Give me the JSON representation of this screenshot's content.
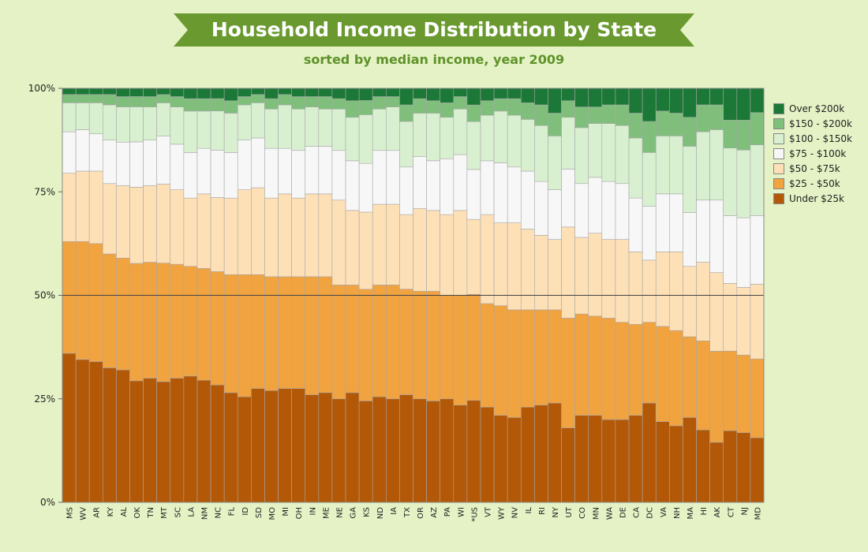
{
  "title": "Household Income Distribution by State",
  "subtitle": "sorted by median income, year 2009",
  "chart_data": {
    "type": "bar",
    "stacked": true,
    "orientation": "vertical",
    "ylim": [
      0,
      100
    ],
    "y_ticks": [
      "0%",
      "25%",
      "50%",
      "75%",
      "100%"
    ],
    "y_tick_values": [
      0,
      25,
      50,
      75,
      100
    ],
    "reference_line": 50,
    "legend_position": "right",
    "categories": [
      "MS",
      "WV",
      "AR",
      "KY",
      "AL",
      "OK",
      "TN",
      "MT",
      "SC",
      "LA",
      "NM",
      "NC",
      "FL",
      "ID",
      "SD",
      "MO",
      "MI",
      "OH",
      "IN",
      "ME",
      "NE",
      "GA",
      "KS",
      "ND",
      "IA",
      "TX",
      "OR",
      "AZ",
      "PA",
      "WI",
      "*US",
      "VT",
      "WY",
      "NV",
      "IL",
      "RI",
      "NY",
      "UT",
      "CO",
      "MN",
      "WA",
      "DE",
      "CA",
      "DC",
      "VA",
      "NH",
      "MA",
      "HI",
      "AK",
      "CT",
      "NJ",
      "MD"
    ],
    "series": [
      {
        "name": "Under $25k",
        "color": "#b35806",
        "values": [
          36,
          34.5,
          34,
          32.5,
          32,
          29.5,
          30,
          29,
          30,
          30.5,
          29.5,
          28.5,
          26.5,
          25.5,
          27.5,
          27,
          27.5,
          27.5,
          26,
          26.5,
          25,
          26.5,
          25,
          25.5,
          25,
          26,
          25,
          24.5,
          25,
          23.5,
          24.5,
          23,
          21,
          20.5,
          23,
          23.5,
          24,
          18,
          21,
          21,
          20,
          20,
          21,
          24,
          19.5,
          18.5,
          20.5,
          17.5,
          14.5,
          18,
          17.5,
          16
        ]
      },
      {
        "name": "$25 - $50k",
        "color": "#f1a340",
        "values": [
          27,
          28.5,
          28.5,
          27.5,
          27,
          28.5,
          28,
          28.5,
          27.5,
          26.5,
          27,
          27.5,
          28.5,
          29.5,
          27.5,
          27.5,
          27,
          27,
          28.5,
          28,
          27.5,
          26,
          27.5,
          27,
          27.5,
          25.5,
          26,
          26.5,
          25,
          26.5,
          25.5,
          25,
          26.5,
          26,
          23.5,
          23,
          22.5,
          26.5,
          24.5,
          24,
          24.5,
          23.5,
          22,
          19.5,
          23,
          23,
          19.5,
          21.5,
          22,
          20,
          19.5,
          19.5
        ]
      },
      {
        "name": "$50 - $75k",
        "color": "#fee0b6",
        "values": [
          16.5,
          17,
          17.5,
          17,
          17.5,
          18.5,
          18.5,
          19,
          18,
          16.5,
          18,
          18,
          18.5,
          20.5,
          21,
          19,
          20,
          19,
          20,
          20,
          20.5,
          18,
          19,
          19.5,
          19.5,
          18,
          20,
          19.5,
          19.5,
          20.5,
          18,
          21.5,
          20,
          21,
          19.5,
          18,
          17,
          22,
          18.5,
          20,
          19,
          20,
          17.5,
          15,
          18,
          19,
          17,
          19,
          19,
          17,
          17,
          18.5
        ]
      },
      {
        "name": "$75 - $100k",
        "color": "#f7f7f7",
        "values": [
          10,
          10,
          9,
          10.5,
          10.5,
          11,
          11,
          11.5,
          11,
          11,
          11,
          11.5,
          11,
          12,
          12,
          12,
          11,
          11.5,
          11.5,
          11.5,
          12,
          12,
          12,
          13,
          13,
          11.5,
          12.5,
          12,
          13.5,
          13.5,
          12,
          13,
          14.5,
          13.5,
          14,
          13,
          12,
          14,
          13,
          13.5,
          14,
          13.5,
          13,
          13,
          14,
          14,
          13,
          15,
          17.5,
          17,
          17.5,
          17
        ]
      },
      {
        "name": "$100 - $150k",
        "color": "#d8f0d0",
        "values": [
          7,
          6.5,
          7.5,
          8.5,
          8.5,
          8.5,
          8,
          8,
          9,
          10,
          9,
          9.5,
          9.5,
          8.5,
          8.5,
          9.5,
          10.5,
          10,
          9.5,
          9,
          10,
          10.5,
          12,
          10,
          10.5,
          11,
          10.5,
          11.5,
          10,
          11,
          11.5,
          11,
          12.5,
          12.5,
          12.5,
          13.5,
          13,
          12.5,
          13.5,
          13,
          14,
          14,
          14.5,
          13,
          14,
          14,
          16,
          16.5,
          17,
          17,
          17,
          17.5
        ]
      },
      {
        "name": "$150 - $200k",
        "color": "#7fbf7b",
        "values": [
          2,
          2,
          2,
          2.5,
          2.5,
          2.5,
          2.5,
          2,
          2.5,
          3,
          3,
          3,
          3,
          2,
          2,
          2.5,
          2.5,
          3,
          2.5,
          3,
          2.5,
          4,
          3.5,
          3,
          2.5,
          4,
          3.5,
          3,
          3.5,
          3,
          4,
          3.5,
          3,
          4,
          4,
          5,
          5.5,
          4,
          5,
          4,
          4.5,
          5,
          6,
          7.5,
          6,
          5.5,
          7,
          6.5,
          6,
          7,
          7.5,
          8
        ]
      },
      {
        "name": "Over $200k",
        "color": "#1b7837",
        "values": [
          1.5,
          1.5,
          1.5,
          1.5,
          2,
          2,
          2,
          1.5,
          2,
          2.5,
          2.5,
          2.5,
          3,
          2,
          1.5,
          2.5,
          1.5,
          2,
          2,
          2,
          2.5,
          3,
          3,
          2,
          2,
          4,
          2.5,
          3,
          3.5,
          2,
          4,
          3,
          2.5,
          2.5,
          3.5,
          4,
          6,
          3,
          4.5,
          4.5,
          4,
          4,
          6,
          8,
          5.5,
          6,
          7,
          4,
          4,
          8,
          8,
          6
        ]
      }
    ]
  },
  "legend": [
    {
      "label": "Over $200k",
      "color": "#1b7837"
    },
    {
      "label": "$150 - $200k",
      "color": "#7fbf7b"
    },
    {
      "label": "$100 - $150k",
      "color": "#d8f0d0"
    },
    {
      "label": "$75 - $100k",
      "color": "#f7f7f7"
    },
    {
      "label": "$50 - $75k",
      "color": "#fee0b6"
    },
    {
      "label": "$25 - $50k",
      "color": "#f1a340"
    },
    {
      "label": "Under $25k",
      "color": "#b35806"
    }
  ],
  "colors": {
    "background": "#e4f2c5",
    "banner": "#6a9a2f",
    "subtitle": "#5f9229"
  }
}
